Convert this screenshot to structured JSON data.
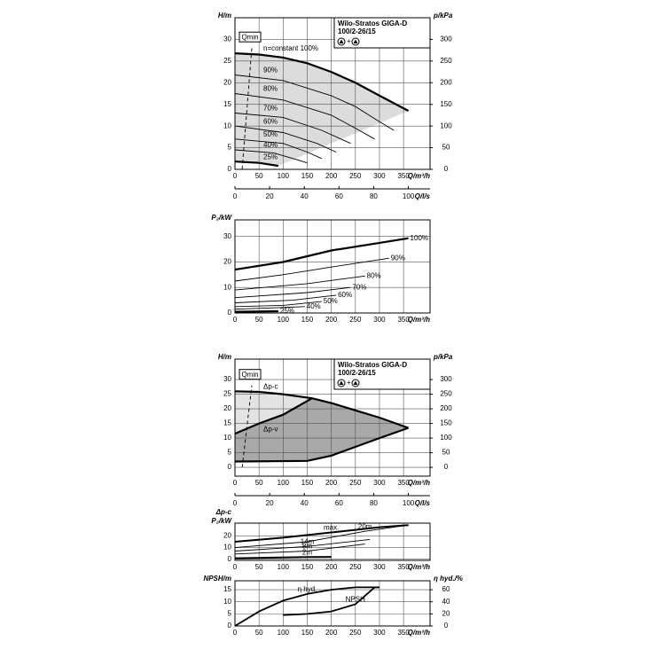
{
  "chart_data": [
    {
      "type": "line",
      "title": [
        "Wilo-Stratos GIGA-D",
        "100/2-26/15"
      ],
      "ylabel": "H/m",
      "y2label": "p/kPa",
      "xlabel": "Q/m³/h",
      "x2label": "Q/l/s",
      "xlim": [
        0,
        405
      ],
      "xticks": [
        0,
        50,
        100,
        150,
        200,
        250,
        300,
        350
      ],
      "x2lim": [
        0,
        112.5
      ],
      "x2ticks": [
        0,
        20,
        40,
        60,
        80,
        100
      ],
      "ylim": [
        0,
        35
      ],
      "yticks": [
        0,
        5,
        10,
        15,
        20,
        25,
        30
      ],
      "y2lim": [
        0,
        350
      ],
      "y2ticks": [
        0,
        50,
        100,
        150,
        200,
        250,
        300
      ],
      "grid": true,
      "series": [
        {
          "name": "Qmin",
          "color": "#000000",
          "dash": true,
          "x": [
            15,
            35
          ],
          "values": [
            0,
            28
          ]
        },
        {
          "name": "n=constant 100%",
          "color": "#000000",
          "width": 2.2,
          "x": [
            0,
            50,
            100,
            150,
            200,
            250,
            300,
            360
          ],
          "values": [
            26.8,
            26.5,
            25.8,
            24.5,
            22.5,
            20,
            17,
            13.5
          ]
        },
        {
          "name": "90%",
          "color": "#000000",
          "x": [
            0,
            100,
            200,
            250,
            300,
            330
          ],
          "values": [
            21.8,
            20.5,
            17,
            14.5,
            11,
            9
          ]
        },
        {
          "name": "80%",
          "color": "#000000",
          "x": [
            0,
            100,
            200,
            250,
            290
          ],
          "values": [
            17.5,
            16,
            12.5,
            9.5,
            7
          ]
        },
        {
          "name": "70%",
          "color": "#000000",
          "x": [
            0,
            100,
            180,
            240
          ],
          "values": [
            13,
            12,
            9,
            6
          ]
        },
        {
          "name": "60%",
          "color": "#000000",
          "x": [
            0,
            100,
            170,
            210
          ],
          "values": [
            10,
            8.5,
            6,
            4
          ]
        },
        {
          "name": "50%",
          "color": "#000000",
          "x": [
            0,
            100,
            150,
            180
          ],
          "values": [
            7,
            6,
            4,
            2.5
          ]
        },
        {
          "name": "40%",
          "color": "#000000",
          "x": [
            0,
            80,
            130,
            150
          ],
          "values": [
            4.5,
            3.8,
            2.2,
            1.5
          ]
        },
        {
          "name": "25%",
          "color": "#000000",
          "width": 2.2,
          "x": [
            0,
            50,
            90
          ],
          "values": [
            1.8,
            1.5,
            0.8
          ]
        }
      ]
    },
    {
      "type": "line",
      "ylabel": "P₂/kW",
      "xlabel": "Q/m³/h",
      "xlim": [
        0,
        405
      ],
      "xticks": [
        0,
        50,
        100,
        150,
        200,
        250,
        300,
        350
      ],
      "ylim": [
        0,
        36.5
      ],
      "yticks": [
        0,
        10,
        20,
        30
      ],
      "grid": true,
      "series": [
        {
          "name": "100%",
          "color": "#000000",
          "width": 2.2,
          "x": [
            0,
            100,
            200,
            300,
            360
          ],
          "values": [
            17,
            20,
            24.5,
            27.5,
            29.3
          ]
        },
        {
          "name": "90%",
          "color": "#000000",
          "x": [
            0,
            100,
            200,
            320
          ],
          "values": [
            12.5,
            15,
            18,
            21.5
          ]
        },
        {
          "name": "80%",
          "color": "#000000",
          "x": [
            0,
            150,
            270
          ],
          "values": [
            9,
            11.5,
            14.5
          ]
        },
        {
          "name": "70%",
          "color": "#000000",
          "x": [
            0,
            150,
            240
          ],
          "values": [
            6,
            8,
            10
          ]
        },
        {
          "name": "60%",
          "color": "#000000",
          "x": [
            0,
            120,
            210
          ],
          "values": [
            4,
            5,
            7
          ]
        },
        {
          "name": "50%",
          "color": "#000000",
          "x": [
            0,
            100,
            180
          ],
          "values": [
            2.5,
            3,
            4.5
          ]
        },
        {
          "name": "40%",
          "color": "#000000",
          "x": [
            0,
            80,
            145
          ],
          "values": [
            1.5,
            2,
            2.5
          ]
        },
        {
          "name": "25%",
          "color": "#000000",
          "width": 2.2,
          "x": [
            0,
            90
          ],
          "values": [
            0.5,
            0.7
          ]
        }
      ]
    },
    {
      "type": "line",
      "title": [
        "Wilo-Stratos GIGA-D",
        "100/2-26/15"
      ],
      "ylabel": "H/m",
      "y2label": "p/kPa",
      "xlabel": "Q/m³/h",
      "x2label": "Q/l/s",
      "xlim": [
        0,
        405
      ],
      "xticks": [
        0,
        50,
        100,
        150,
        200,
        250,
        300,
        350
      ],
      "x2lim": [
        0,
        112.5
      ],
      "x2ticks": [
        0,
        20,
        40,
        60,
        80,
        100
      ],
      "ylim": [
        -3,
        37
      ],
      "yticks": [
        0,
        5,
        10,
        15,
        20,
        25,
        30
      ],
      "y2lim": [
        -30,
        370
      ],
      "y2ticks": [
        0,
        50,
        100,
        150,
        200,
        250,
        300
      ],
      "grid": true,
      "series": [
        {
          "name": "Qmin",
          "color": "#000000",
          "dash": true,
          "x": [
            15,
            35
          ],
          "values": [
            0,
            28
          ]
        },
        {
          "name": "Δp-c",
          "color": "#000000",
          "width": 2.2,
          "x": [
            0,
            50,
            100,
            160,
            200,
            250,
            300,
            360
          ],
          "values": [
            26,
            25.8,
            25,
            23.6,
            22,
            19.5,
            17,
            13.5
          ]
        },
        {
          "name": "Δp-v",
          "color": "#000000",
          "width": 2.2,
          "x": [
            0,
            50,
            100,
            160
          ],
          "values": [
            11.5,
            15,
            18,
            23.6
          ]
        },
        {
          "color": "#000000",
          "width": 2.2,
          "x": [
            0,
            150,
            200,
            250,
            300,
            360
          ],
          "values": [
            2,
            2.2,
            4,
            7,
            10,
            13.5
          ]
        }
      ]
    },
    {
      "type": "line",
      "title": "Δp-c",
      "ylabel": "P₂/kW",
      "xlabel": "Q/m³/h",
      "xlim": [
        0,
        405
      ],
      "xticks": [
        0,
        50,
        100,
        150,
        200,
        250,
        300,
        350
      ],
      "ylim": [
        -1,
        31
      ],
      "yticks": [
        0,
        10,
        20
      ],
      "grid": true,
      "series": [
        {
          "name": "max.",
          "color": "#000000",
          "width": 2,
          "x": [
            0,
            100,
            200,
            300,
            360
          ],
          "values": [
            15,
            18.5,
            23,
            27.5,
            29.3
          ]
        },
        {
          "name": "20m",
          "color": "#000000",
          "x": [
            0,
            150,
            270,
            360
          ],
          "values": [
            10,
            15,
            24,
            29.3
          ]
        },
        {
          "name": "14m",
          "color": "#000000",
          "x": [
            0,
            150,
            280
          ],
          "values": [
            7,
            11,
            17
          ]
        },
        {
          "name": "8m",
          "color": "#000000",
          "x": [
            0,
            150,
            270
          ],
          "values": [
            4.5,
            7,
            13
          ]
        },
        {
          "name": "2m",
          "color": "#000000",
          "width": 2,
          "x": [
            0,
            150,
            200
          ],
          "values": [
            0.8,
            1.8,
            2
          ]
        }
      ]
    },
    {
      "type": "line",
      "ylabel": "NPSH/m",
      "y2label": "η hyd./%",
      "xlabel": "Q/m³/h",
      "xlim": [
        0,
        405
      ],
      "xticks": [
        0,
        50,
        100,
        150,
        200,
        250,
        300,
        350
      ],
      "ylim": [
        0,
        18.7
      ],
      "yticks": [
        0,
        5,
        10,
        15
      ],
      "y2lim": [
        0,
        74.8
      ],
      "y2ticks": [
        0,
        20,
        40,
        60
      ],
      "grid": true,
      "series": [
        {
          "name": "η hyd.",
          "color": "#000000",
          "width": 1.8,
          "axis": "y2",
          "x": [
            0,
            50,
            100,
            150,
            200,
            250,
            300
          ],
          "values": [
            0,
            24,
            42,
            53,
            60,
            64,
            64
          ]
        },
        {
          "name": "NPSH",
          "color": "#000000",
          "width": 1.8,
          "x": [
            100,
            150,
            200,
            250,
            290,
            300
          ],
          "values": [
            4.5,
            5,
            6,
            9,
            16,
            16
          ]
        }
      ]
    }
  ]
}
